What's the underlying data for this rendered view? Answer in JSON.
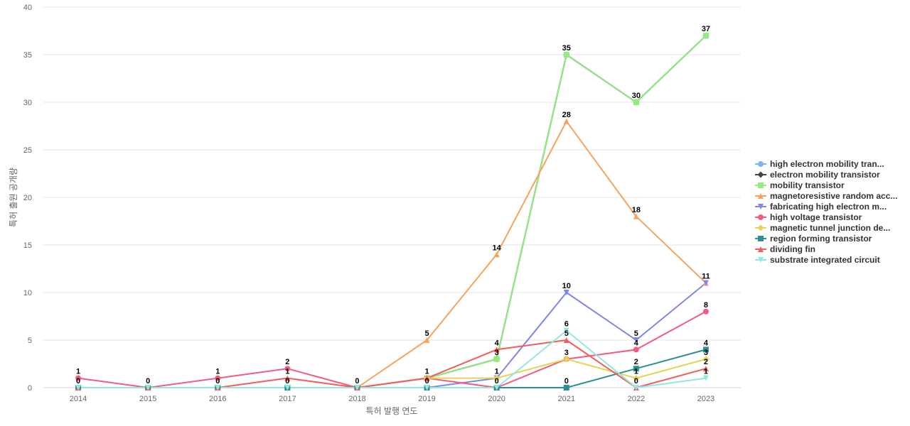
{
  "chart_data": {
    "type": "line",
    "title": "",
    "xlabel": "특허 발행 연도",
    "ylabel": "특허 출원 공개량",
    "x": [
      "2014",
      "2015",
      "2016",
      "2017",
      "2018",
      "2019",
      "2020",
      "2021",
      "2022",
      "2023"
    ],
    "ylim": [
      0,
      40
    ],
    "yticks": [
      0,
      5,
      10,
      15,
      20,
      25,
      30,
      35,
      40
    ],
    "grid": "horizontal",
    "legend_position": "right",
    "series": [
      {
        "name": "high electron mobility tran...",
        "color": "#7cb5ec",
        "marker": "circle",
        "values": [
          0,
          0,
          0,
          0,
          0,
          1,
          3,
          35,
          30,
          37
        ],
        "labels": false
      },
      {
        "name": "electron mobility transistor",
        "color": "#434348",
        "marker": "diamond",
        "values": [
          0,
          0,
          0,
          0,
          0,
          1,
          3,
          35,
          30,
          37
        ],
        "labels": false
      },
      {
        "name": "mobility transistor",
        "color": "#90ed7d",
        "marker": "square",
        "values": [
          0,
          0,
          0,
          0,
          0,
          1,
          3,
          35,
          30,
          37
        ],
        "labels": true
      },
      {
        "name": "magnetoresistive random acc...",
        "color": "#f7a35c",
        "marker": "triangle",
        "values": [
          0,
          0,
          0,
          0,
          0,
          5,
          14,
          28,
          18,
          11
        ],
        "labels": true
      },
      {
        "name": "fabricating high electron m...",
        "color": "#8085e9",
        "marker": "triangle-down",
        "values": [
          0,
          0,
          0,
          0,
          0,
          0,
          1,
          10,
          5,
          11
        ],
        "labels": true
      },
      {
        "name": "high voltage transistor",
        "color": "#f15c80",
        "marker": "circle",
        "values": [
          1,
          0,
          1,
          2,
          0,
          1,
          0,
          3,
          4,
          8
        ],
        "labels": true
      },
      {
        "name": "magnetic tunnel junction de...",
        "color": "#e4d354",
        "marker": "diamond",
        "values": [
          0,
          0,
          0,
          0,
          0,
          1,
          1,
          3,
          1,
          3
        ],
        "labels": true
      },
      {
        "name": "region forming transistor",
        "color": "#2b908f",
        "marker": "square",
        "values": [
          0,
          0,
          0,
          0,
          0,
          0,
          0,
          0,
          2,
          4
        ],
        "labels": true
      },
      {
        "name": "dividing fin",
        "color": "#f45b5b",
        "marker": "triangle",
        "values": [
          0,
          0,
          0,
          1,
          0,
          1,
          4,
          5,
          0,
          2
        ],
        "labels": true
      },
      {
        "name": "substrate integrated circuit",
        "color": "#91e8e1",
        "marker": "triangle-down",
        "values": [
          0,
          0,
          0,
          0,
          0,
          0,
          0,
          6,
          0,
          1
        ],
        "labels": true
      }
    ],
    "data_labels": [
      {
        "x": "2014",
        "text": "1"
      },
      {
        "x": "2014",
        "text": "0"
      },
      {
        "x": "2015",
        "text": "0"
      },
      {
        "x": "2016",
        "text": "1"
      },
      {
        "x": "2016",
        "text": "0"
      },
      {
        "x": "2017",
        "text": "2"
      },
      {
        "x": "2017",
        "text": "1"
      },
      {
        "x": "2017",
        "text": "0"
      },
      {
        "x": "2018",
        "text": "0"
      },
      {
        "x": "2019",
        "text": "5"
      },
      {
        "x": "2019",
        "text": "1"
      },
      {
        "x": "2019",
        "text": "0"
      },
      {
        "x": "2020",
        "text": "14"
      },
      {
        "x": "2020",
        "text": "4"
      },
      {
        "x": "2020",
        "text": "3"
      },
      {
        "x": "2020",
        "text": "1"
      },
      {
        "x": "2020",
        "text": "0"
      },
      {
        "x": "2021",
        "text": "35"
      },
      {
        "x": "2021",
        "text": "28"
      },
      {
        "x": "2021",
        "text": "10"
      },
      {
        "x": "2021",
        "text": "6"
      },
      {
        "x": "2021",
        "text": "5"
      },
      {
        "x": "2021",
        "text": "3"
      },
      {
        "x": "2021",
        "text": "0"
      },
      {
        "x": "2022",
        "text": "30"
      },
      {
        "x": "2022",
        "text": "18"
      },
      {
        "x": "2022",
        "text": "5"
      },
      {
        "x": "2022",
        "text": "4"
      },
      {
        "x": "2022",
        "text": "2"
      },
      {
        "x": "2022",
        "text": "1"
      },
      {
        "x": "2022",
        "text": "0"
      },
      {
        "x": "2023",
        "text": "37"
      },
      {
        "x": "2023",
        "text": "11"
      },
      {
        "x": "2023",
        "text": "8"
      },
      {
        "x": "2023",
        "text": "4"
      },
      {
        "x": "2023",
        "text": "3"
      },
      {
        "x": "2023",
        "text": "2"
      },
      {
        "x": "2023",
        "text": "1"
      }
    ]
  }
}
